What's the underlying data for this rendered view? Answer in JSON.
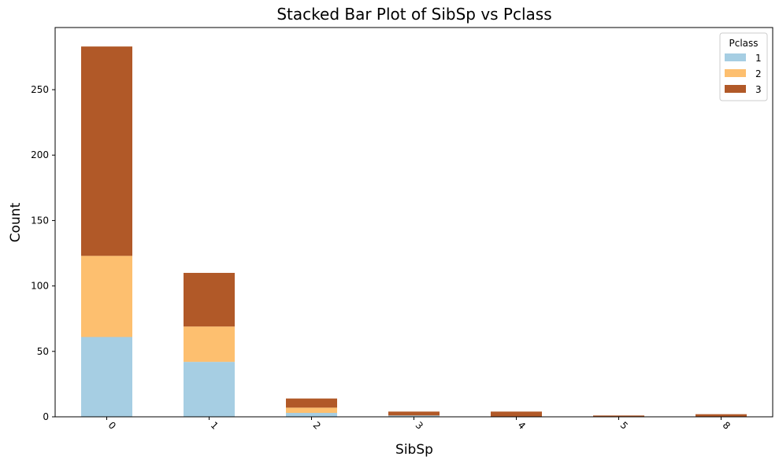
{
  "chart_data": {
    "type": "bar",
    "stacked": true,
    "title": "Stacked Bar Plot of SibSp vs Pclass",
    "xlabel": "SibSp",
    "ylabel": "Count",
    "categories": [
      "0",
      "1",
      "2",
      "3",
      "4",
      "5",
      "8"
    ],
    "series": [
      {
        "name": "1",
        "color": "#a6cee3",
        "values": [
          61,
          42,
          3,
          1,
          0,
          0,
          0
        ]
      },
      {
        "name": "2",
        "color": "#fdbf6f",
        "values": [
          62,
          27,
          4,
          0,
          0,
          0,
          0
        ]
      },
      {
        "name": "3",
        "color": "#b15928",
        "values": [
          160,
          41,
          7,
          3,
          4,
          1,
          2
        ]
      }
    ],
    "ylim": [
      0,
      297.5
    ],
    "yticks": [
      0,
      50,
      100,
      150,
      200,
      250
    ],
    "legend": {
      "title": "Pclass",
      "position": "top-right"
    },
    "grid": false
  }
}
